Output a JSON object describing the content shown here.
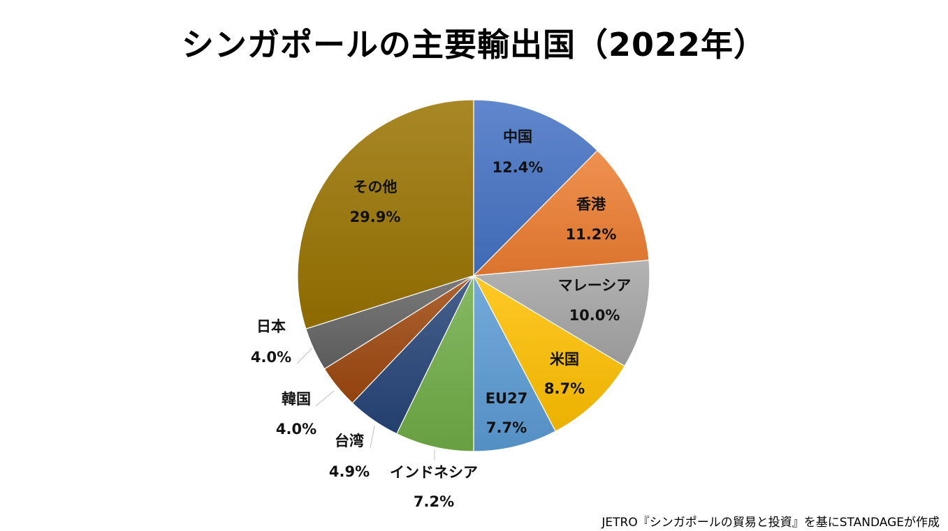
{
  "chart_data": {
    "type": "pie",
    "title": "シンガポールの主要輸出国（2022年）",
    "start": "top",
    "direction": "clockwise",
    "categories": [
      "中国",
      "香港",
      "マレーシア",
      "米国",
      "EU27",
      "インドネシア",
      "台湾",
      "韓国",
      "日本",
      "その他"
    ],
    "values": [
      12.4,
      11.2,
      10.0,
      8.7,
      7.7,
      7.2,
      4.9,
      4.0,
      4.0,
      29.9
    ],
    "labels": [
      "12.4%",
      "11.2%",
      "10.0%",
      "8.7%",
      "7.7%",
      "7.2%",
      "4.9%",
      "4.0%",
      "4.0%",
      "29.9%"
    ],
    "colors": [
      "#4472C4",
      "#ED7D31",
      "#A5A5A5",
      "#FFC000",
      "#5B9BD5",
      "#70AD47",
      "#264478",
      "#9E480E",
      "#636363",
      "#997300"
    ],
    "legend": "none"
  },
  "source": "JETRO『シンガポールの貿易と投資』を基にSTANDAGEが作成"
}
